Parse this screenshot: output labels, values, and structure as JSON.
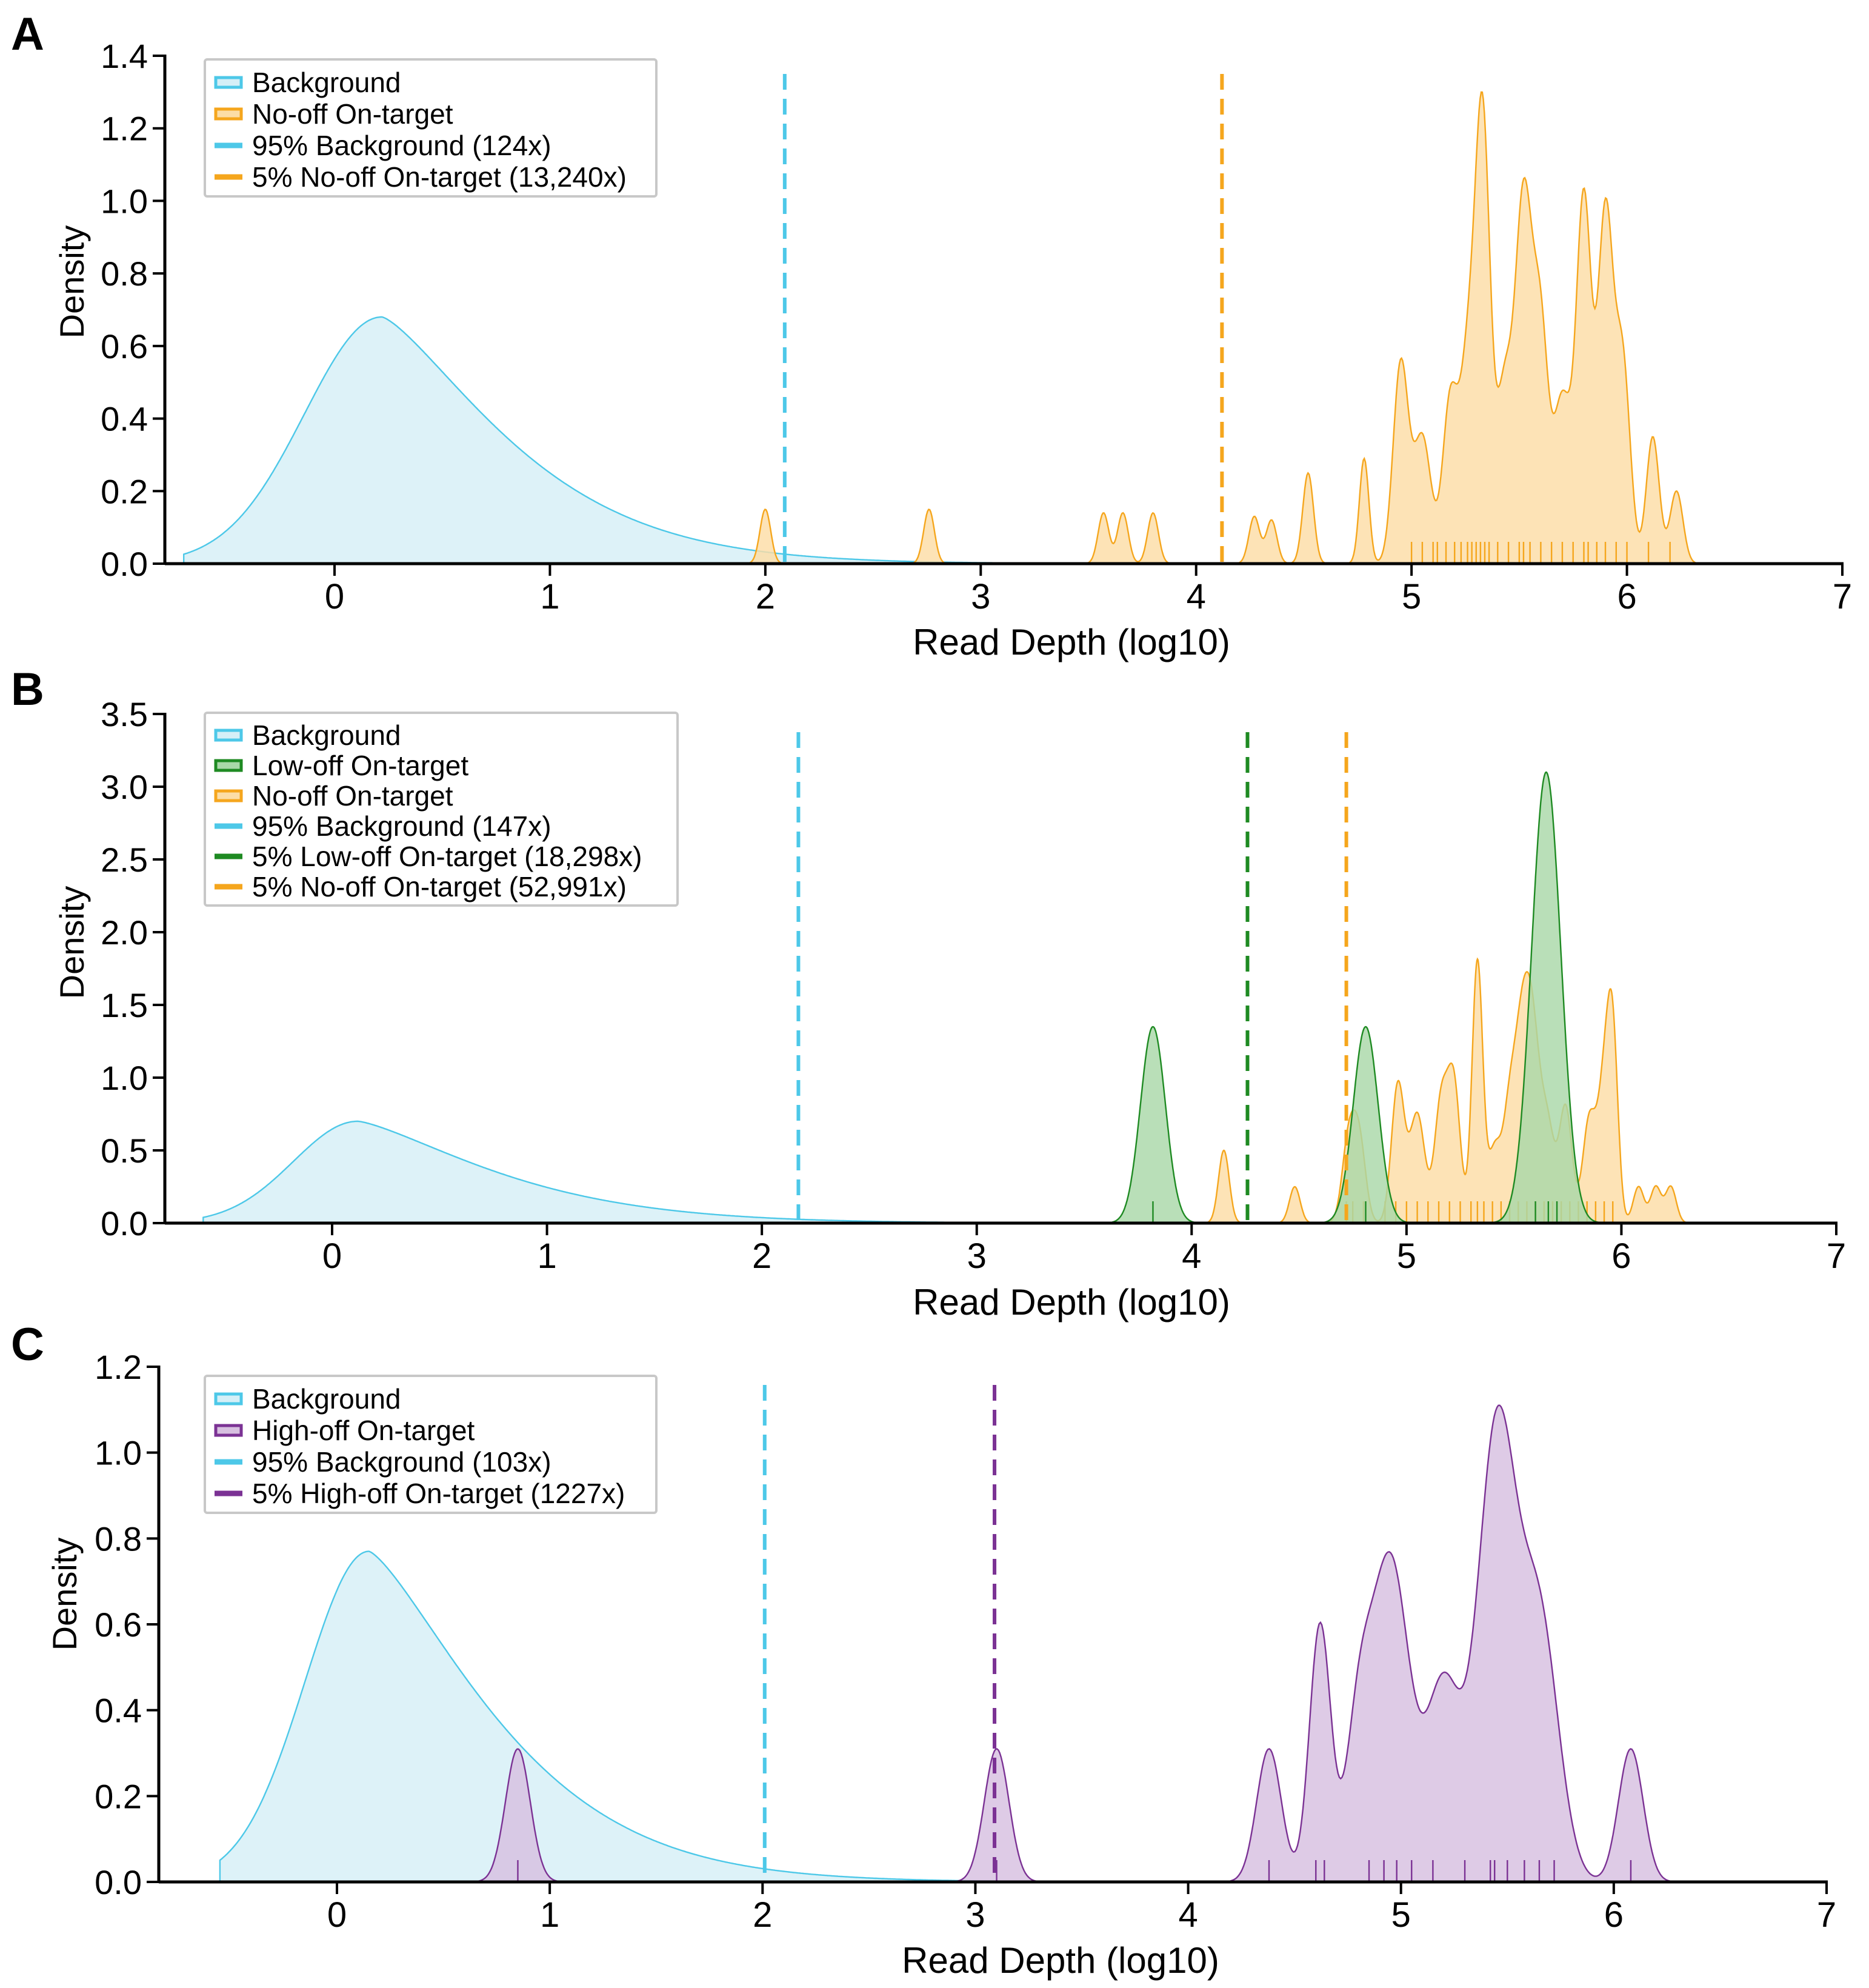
{
  "colors": {
    "background": "#4DC8E8",
    "background_fill": "#D5EFF7",
    "no_off": "#F5A61D",
    "no_off_fill": "#FCDDA6",
    "low_off": "#1E8A22",
    "low_off_fill": "#A9D8A8",
    "high_off": "#7B3294",
    "high_off_fill": "#D7C0E0",
    "axis": "#000000"
  },
  "chart_data": [
    {
      "type": "area",
      "panel_label": "A",
      "xlabel": "Read Depth (log10)",
      "ylabel": "Density",
      "xlim": [
        -0.7,
        7
      ],
      "ylim": [
        0,
        1.4
      ],
      "xticks": [
        0,
        1,
        2,
        3,
        4,
        5,
        6,
        7
      ],
      "xtick_labels": [
        "0",
        "1",
        "2",
        "3",
        "4",
        "5",
        "6",
        "7"
      ],
      "yticks": [
        0,
        0.2,
        0.4,
        0.6,
        0.8,
        1.0,
        1.2,
        1.4
      ],
      "ytick_labels": [
        "0.0",
        "0.2",
        "0.4",
        "0.6",
        "0.8",
        "1.0",
        "1.2",
        "1.4"
      ],
      "legend_position": "top-left",
      "legend": [
        {
          "label": "Background",
          "kind": "area",
          "color_key": "background"
        },
        {
          "label": "No-off On-target",
          "kind": "area",
          "color_key": "no_off"
        },
        {
          "label": "95% Background (124x)",
          "kind": "line",
          "color_key": "background"
        },
        {
          "label": "5% No-off On-target (13,240x)",
          "kind": "line",
          "color_key": "no_off"
        }
      ],
      "series": [
        {
          "name": "Background",
          "color_key": "background",
          "shape": "lognormal",
          "params": {
            "mode": 0.22,
            "peak": 0.68,
            "start": -0.7,
            "end": 4.2,
            "left_sd": 0.36,
            "right_scale": 0.78
          }
        },
        {
          "name": "No-off On-target",
          "color_key": "no_off",
          "shape": "peaks",
          "range": [
            1.88,
            6.32
          ],
          "peaks": [
            [
              2.0,
              0.15,
              0.025
            ],
            [
              2.76,
              0.15,
              0.025
            ],
            [
              3.57,
              0.14,
              0.025
            ],
            [
              3.66,
              0.14,
              0.025
            ],
            [
              3.8,
              0.14,
              0.025
            ],
            [
              4.27,
              0.13,
              0.025
            ],
            [
              4.35,
              0.12,
              0.025
            ],
            [
              4.52,
              0.25,
              0.025
            ],
            [
              4.78,
              0.29,
              0.022
            ],
            [
              4.95,
              0.55,
              0.035
            ],
            [
              5.05,
              0.35,
              0.04
            ],
            [
              5.18,
              0.45,
              0.035
            ],
            [
              5.26,
              0.5,
              0.035
            ],
            [
              5.33,
              1.22,
              0.035
            ],
            [
              5.43,
              0.45,
              0.035
            ],
            [
              5.52,
              1.0,
              0.04
            ],
            [
              5.6,
              0.6,
              0.035
            ],
            [
              5.7,
              0.45,
              0.04
            ],
            [
              5.8,
              1.0,
              0.035
            ],
            [
              5.9,
              0.95,
              0.035
            ],
            [
              5.98,
              0.55,
              0.035
            ],
            [
              6.12,
              0.35,
              0.03
            ],
            [
              6.23,
              0.2,
              0.03
            ]
          ],
          "rug": [
            5.0,
            5.05,
            5.1,
            5.12,
            5.16,
            5.2,
            5.23,
            5.26,
            5.28,
            5.3,
            5.32,
            5.34,
            5.36,
            5.4,
            5.45,
            5.5,
            5.52,
            5.55,
            5.6,
            5.65,
            5.7,
            5.75,
            5.8,
            5.82,
            5.86,
            5.9,
            5.95,
            6.0,
            6.1,
            6.2
          ]
        }
      ],
      "vlines": [
        {
          "x": 2.09,
          "color_key": "background"
        },
        {
          "x": 4.12,
          "color_key": "no_off"
        }
      ]
    },
    {
      "type": "area",
      "panel_label": "B",
      "xlabel": "Read Depth (log10)",
      "ylabel": "Density",
      "xlim": [
        -0.6,
        7
      ],
      "ylim": [
        0,
        3.5
      ],
      "xticks": [
        0,
        1,
        2,
        3,
        4,
        5,
        6,
        7
      ],
      "xtick_labels": [
        "0",
        "1",
        "2",
        "3",
        "4",
        "5",
        "6",
        "7"
      ],
      "yticks": [
        0,
        0.5,
        1.0,
        1.5,
        2.0,
        2.5,
        3.0,
        3.5
      ],
      "ytick_labels": [
        "0.0",
        "0.5",
        "1.0",
        "1.5",
        "2.0",
        "2.5",
        "3.0",
        "3.5"
      ],
      "legend_position": "top-left",
      "legend": [
        {
          "label": "Background",
          "kind": "area",
          "color_key": "background"
        },
        {
          "label": "Low-off On-target",
          "kind": "area",
          "color_key": "low_off"
        },
        {
          "label": "No-off On-target",
          "kind": "area",
          "color_key": "no_off"
        },
        {
          "label": "95% Background (147x)",
          "kind": "line",
          "color_key": "background"
        },
        {
          "label": "5% Low-off On-target (18,298x)",
          "kind": "line",
          "color_key": "low_off"
        },
        {
          "label": "5% No-off On-target (52,991x)",
          "kind": "line",
          "color_key": "no_off"
        }
      ],
      "series": [
        {
          "name": "Background",
          "color_key": "background",
          "shape": "lognormal",
          "params": {
            "mode": 0.12,
            "peak": 0.7,
            "start": -0.6,
            "end": 3.9,
            "left_sd": 0.3,
            "right_scale": 0.85
          }
        },
        {
          "name": "No-off On-target",
          "color_key": "no_off",
          "shape": "peaks",
          "range": [
            4.05,
            6.3
          ],
          "peaks": [
            [
              4.15,
              0.5,
              0.025
            ],
            [
              4.48,
              0.25,
              0.025
            ],
            [
              4.73,
              0.55,
              0.03
            ],
            [
              4.78,
              0.55,
              0.03
            ],
            [
              4.96,
              0.95,
              0.03
            ],
            [
              5.05,
              0.75,
              0.035
            ],
            [
              5.16,
              0.8,
              0.03
            ],
            [
              5.22,
              0.95,
              0.03
            ],
            [
              5.33,
              1.8,
              0.025
            ],
            [
              5.41,
              0.5,
              0.03
            ],
            [
              5.48,
              0.75,
              0.03
            ],
            [
              5.53,
              0.7,
              0.03
            ],
            [
              5.58,
              1.45,
              0.04
            ],
            [
              5.66,
              0.55,
              0.03
            ],
            [
              5.74,
              0.8,
              0.03
            ],
            [
              5.85,
              0.7,
              0.03
            ],
            [
              5.92,
              0.9,
              0.03
            ],
            [
              5.96,
              1.15,
              0.025
            ],
            [
              6.08,
              0.25,
              0.025
            ],
            [
              6.16,
              0.25,
              0.025
            ],
            [
              6.23,
              0.25,
              0.025
            ]
          ],
          "rug": [
            4.72,
            4.75,
            4.8,
            4.9,
            4.95,
            5.0,
            5.05,
            5.1,
            5.15,
            5.2,
            5.25,
            5.3,
            5.33,
            5.36,
            5.4,
            5.44,
            5.48,
            5.52,
            5.56,
            5.6,
            5.64,
            5.68,
            5.72,
            5.76,
            5.8,
            5.84,
            5.88,
            5.92,
            5.96
          ]
        },
        {
          "name": "Low-off On-target",
          "color_key": "low_off",
          "shape": "peaks",
          "range": [
            3.55,
            5.95
          ],
          "peaks": [
            [
              3.82,
              1.35,
              0.058
            ],
            [
              4.81,
              1.35,
              0.058
            ],
            [
              5.65,
              3.1,
              0.068
            ]
          ],
          "rug": [
            3.82,
            4.81,
            5.6,
            5.66,
            5.7
          ]
        }
      ],
      "vlines": [
        {
          "x": 2.17,
          "color_key": "background"
        },
        {
          "x": 4.26,
          "color_key": "low_off"
        },
        {
          "x": 4.72,
          "color_key": "no_off"
        }
      ]
    },
    {
      "type": "area",
      "panel_label": "C",
      "xlabel": "Read Depth (log10)",
      "ylabel": "Density",
      "xlim": [
        -0.6,
        7
      ],
      "ylim": [
        0,
        1.2
      ],
      "xticks": [
        0,
        1,
        2,
        3,
        4,
        5,
        6,
        7
      ],
      "xtick_labels": [
        "0",
        "1",
        "2",
        "3",
        "4",
        "5",
        "6",
        "7"
      ],
      "yticks": [
        0,
        0.2,
        0.4,
        0.6,
        0.8,
        1.0,
        1.2
      ],
      "ytick_labels": [
        "0.0",
        "0.2",
        "0.4",
        "0.6",
        "0.8",
        "1.0",
        "1.2"
      ],
      "legend_position": "top-left",
      "legend": [
        {
          "label": "Background",
          "kind": "area",
          "color_key": "background"
        },
        {
          "label": "High-off On-target",
          "kind": "area",
          "color_key": "high_off"
        },
        {
          "label": "95% Background (103x)",
          "kind": "line",
          "color_key": "background"
        },
        {
          "label": "5% High-off On-target (1227x)",
          "kind": "line",
          "color_key": "high_off"
        }
      ],
      "series": [
        {
          "name": "Background",
          "color_key": "background",
          "shape": "lognormal",
          "params": {
            "mode": 0.15,
            "peak": 0.77,
            "start": -0.55,
            "end": 3.8,
            "left_sd": 0.3,
            "right_scale": 0.78
          }
        },
        {
          "name": "High-off On-target",
          "color_key": "high_off",
          "shape": "peaks",
          "range": [
            0.6,
            6.3
          ],
          "peaks": [
            [
              0.85,
              0.31,
              0.058
            ],
            [
              3.1,
              0.31,
              0.058
            ],
            [
              4.38,
              0.31,
              0.058
            ],
            [
              4.62,
              0.6,
              0.05
            ],
            [
              4.8,
              0.32,
              0.06
            ],
            [
              4.95,
              0.75,
              0.09
            ],
            [
              5.2,
              0.45,
              0.08
            ],
            [
              5.45,
              1.05,
              0.09
            ],
            [
              5.65,
              0.6,
              0.09
            ],
            [
              6.08,
              0.31,
              0.058
            ]
          ],
          "rug": [
            0.85,
            3.1,
            4.38,
            4.6,
            4.64,
            4.85,
            4.92,
            4.98,
            5.05,
            5.15,
            5.3,
            5.42,
            5.44,
            5.5,
            5.58,
            5.65,
            5.72,
            6.08
          ]
        }
      ],
      "vlines": [
        {
          "x": 2.01,
          "color_key": "background"
        },
        {
          "x": 3.09,
          "color_key": "high_off"
        }
      ]
    }
  ]
}
